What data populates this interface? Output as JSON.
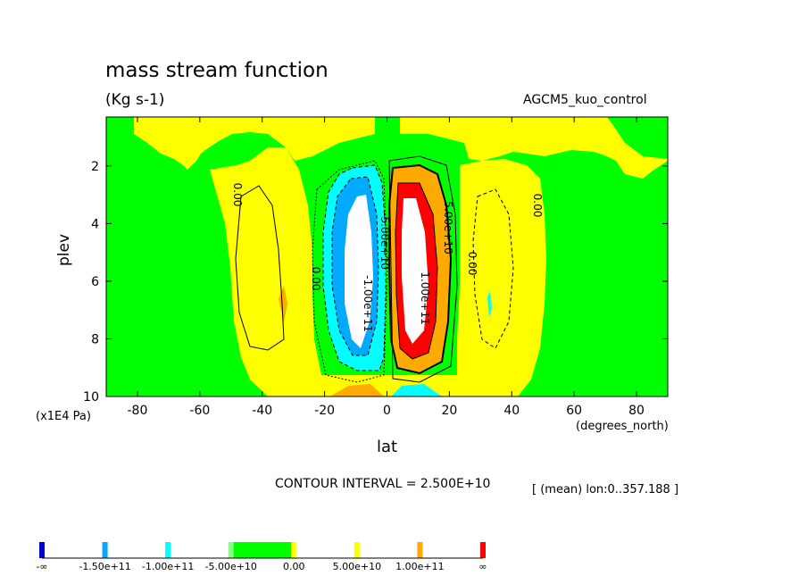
{
  "chart_data": {
    "type": "heatmap",
    "title": "mass stream function",
    "units": "(Kg s-1)",
    "run": "AGCM5_kuo_control",
    "xlabel": "lat",
    "xunits": "(degrees_north)",
    "ylabel": "plev",
    "yunits": "(x1E4 Pa)",
    "xlim": [
      -90,
      90
    ],
    "ylim": [
      10,
      0.3
    ],
    "x_ticks": [
      "-80",
      "-60",
      "-40",
      "-20",
      "0",
      "20",
      "40",
      "60",
      "80"
    ],
    "y_ticks": [
      "2",
      "4",
      "6",
      "8",
      "10"
    ],
    "contour_interval": "CONTOUR INTERVAL = 2.500E+10",
    "stat_note": "[ (mean) lon:0..357.188 ]",
    "contour_labels": [
      "0.00",
      "0.00",
      "0.00",
      "0.00",
      "-5.00e+10",
      "-1.00e+11",
      "5.00e+10",
      "1.00e+11"
    ],
    "colorbar": {
      "labels": [
        "-∞",
        "-1.50e+11",
        "-1.00e+11",
        "-5.00e+10",
        "0.00",
        "5.00e+10",
        "1.00e+11",
        "∞"
      ],
      "colors": [
        "#0000cc",
        "#00aaff",
        "#00ffff",
        "#00ff00",
        "#ffff00",
        "#ffaa00",
        "#ff0000",
        "#ffffff"
      ]
    },
    "fill_regions": [
      {
        "name": "sh-hadley-cell",
        "color": "#00aaff",
        "lat_range": [
          -18,
          -4
        ],
        "plev_range": [
          2.5,
          8.8
        ],
        "min_value": -150000000000.0
      },
      {
        "name": "nh-hadley-cell",
        "color": "#ff0000",
        "lat_range": [
          4,
          17
        ],
        "plev_range": [
          2.4,
          8.8
        ],
        "max_value": 150000000000.0
      },
      {
        "name": "sh-ferrel-cell",
        "color": "#ffff00",
        "lat_range": [
          -60,
          -20
        ],
        "plev_range": [
          1.5,
          10
        ],
        "sign": "positive"
      },
      {
        "name": "nh-ferrel-cell",
        "color": "#ffff00",
        "lat_range": [
          20,
          55
        ],
        "plev_range": [
          1.5,
          10
        ],
        "sign": "positive"
      }
    ]
  }
}
